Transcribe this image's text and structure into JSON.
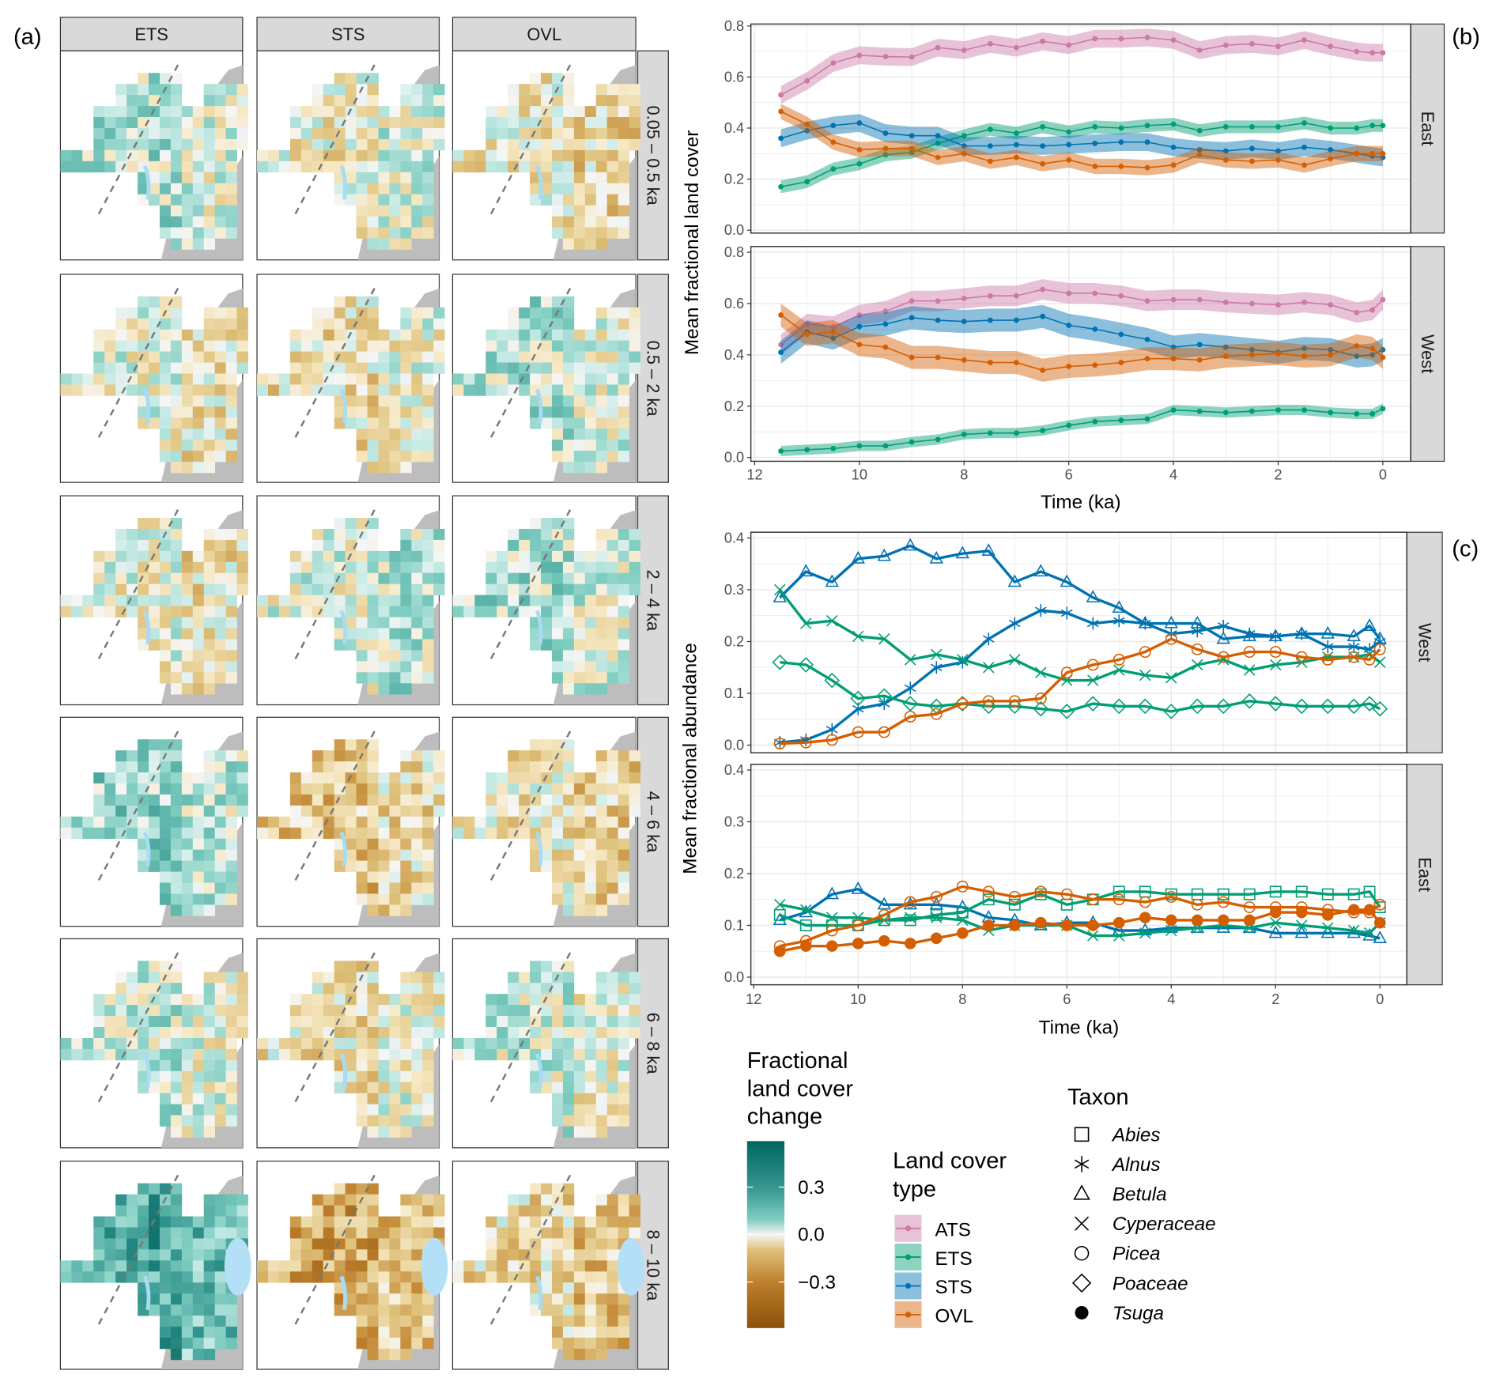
{
  "panel_labels": {
    "a": "(a)",
    "b": "(b)",
    "c": "(c)"
  },
  "panel_a": {
    "columns": [
      "ETS",
      "STS",
      "OVL"
    ],
    "rows": [
      "0.05 – 0.5 ka",
      "0.5 – 2 ka",
      "2 – 4 ka",
      "4 – 6 ka",
      "6 – 8 ka",
      "8 – 10 ka"
    ],
    "color_scale": {
      "low": "#8c510a",
      "mid": "#f5f5f5",
      "high": "#01665e"
    }
  },
  "chart_data": [
    {
      "panel": "b",
      "type": "line",
      "xlabel": "Time (ka)",
      "ylabel": "Mean fractional land cover",
      "x_reversed": true,
      "xlim": [
        12.1,
        -0.5
      ],
      "ylim": [
        0,
        0.8
      ],
      "x_tick_labels": [
        "12",
        "10",
        "8",
        "6",
        "4",
        "2",
        "0"
      ],
      "y_tick_labels": [
        "0.0",
        "0.2",
        "0.4",
        "0.6",
        "0.8"
      ],
      "grid": true,
      "facets": [
        "East",
        "West"
      ],
      "x": [
        11.5,
        11,
        10.5,
        10,
        9.5,
        9,
        8.5,
        8,
        7.5,
        7,
        6.5,
        6,
        5.5,
        5,
        4.5,
        4,
        3.5,
        3,
        2.5,
        2,
        1.5,
        1,
        0.5,
        0.2,
        0
      ],
      "series": [
        {
          "name": "ATS",
          "facet": "East",
          "color": "#cc79a7",
          "ci_halfwidth": 0.035,
          "values": [
            0.53,
            0.585,
            0.655,
            0.685,
            0.68,
            0.678,
            0.715,
            0.705,
            0.73,
            0.715,
            0.74,
            0.725,
            0.75,
            0.75,
            0.755,
            0.745,
            0.705,
            0.725,
            0.73,
            0.72,
            0.745,
            0.72,
            0.7,
            0.695,
            0.695
          ]
        },
        {
          "name": "ETS",
          "facet": "East",
          "color": "#009e73",
          "ci_halfwidth": 0.025,
          "values": [
            0.17,
            0.19,
            0.24,
            0.26,
            0.295,
            0.305,
            0.34,
            0.37,
            0.395,
            0.38,
            0.405,
            0.385,
            0.405,
            0.4,
            0.41,
            0.415,
            0.39,
            0.405,
            0.405,
            0.405,
            0.42,
            0.4,
            0.4,
            0.41,
            0.41
          ]
        },
        {
          "name": "STS",
          "facet": "East",
          "color": "#0072b2",
          "ci_halfwidth": 0.035,
          "values": [
            0.36,
            0.39,
            0.41,
            0.42,
            0.38,
            0.37,
            0.37,
            0.33,
            0.33,
            0.335,
            0.33,
            0.335,
            0.34,
            0.345,
            0.345,
            0.325,
            0.315,
            0.31,
            0.32,
            0.31,
            0.325,
            0.315,
            0.3,
            0.29,
            0.285
          ]
        },
        {
          "name": "OVL",
          "facet": "East",
          "color": "#d55e00",
          "ci_halfwidth": 0.03,
          "values": [
            0.465,
            0.415,
            0.345,
            0.315,
            0.32,
            0.32,
            0.285,
            0.3,
            0.27,
            0.285,
            0.26,
            0.275,
            0.25,
            0.25,
            0.245,
            0.255,
            0.295,
            0.275,
            0.27,
            0.275,
            0.255,
            0.28,
            0.3,
            0.3,
            0.3
          ]
        },
        {
          "name": "ATS",
          "facet": "West",
          "color": "#cc79a7",
          "ci_halfwidth": 0.04,
          "values": [
            0.44,
            0.52,
            0.51,
            0.555,
            0.57,
            0.61,
            0.61,
            0.62,
            0.63,
            0.63,
            0.655,
            0.64,
            0.64,
            0.63,
            0.61,
            0.615,
            0.615,
            0.605,
            0.6,
            0.595,
            0.605,
            0.595,
            0.565,
            0.575,
            0.615
          ]
        },
        {
          "name": "ETS",
          "facet": "West",
          "color": "#009e73",
          "ci_halfwidth": 0.02,
          "values": [
            0.025,
            0.03,
            0.035,
            0.045,
            0.045,
            0.06,
            0.07,
            0.09,
            0.095,
            0.095,
            0.105,
            0.125,
            0.14,
            0.145,
            0.15,
            0.185,
            0.18,
            0.175,
            0.18,
            0.185,
            0.185,
            0.175,
            0.17,
            0.17,
            0.19
          ]
        },
        {
          "name": "STS",
          "facet": "West",
          "color": "#0072b2",
          "ci_halfwidth": 0.045,
          "values": [
            0.41,
            0.49,
            0.465,
            0.51,
            0.52,
            0.545,
            0.535,
            0.53,
            0.535,
            0.535,
            0.55,
            0.515,
            0.5,
            0.48,
            0.46,
            0.43,
            0.44,
            0.43,
            0.42,
            0.41,
            0.425,
            0.42,
            0.395,
            0.4,
            0.42
          ]
        },
        {
          "name": "OVL",
          "facet": "West",
          "color": "#d55e00",
          "ci_halfwidth": 0.045,
          "values": [
            0.555,
            0.48,
            0.49,
            0.44,
            0.43,
            0.39,
            0.39,
            0.38,
            0.37,
            0.37,
            0.34,
            0.355,
            0.36,
            0.37,
            0.385,
            0.385,
            0.38,
            0.395,
            0.4,
            0.405,
            0.395,
            0.4,
            0.435,
            0.425,
            0.39
          ]
        }
      ]
    },
    {
      "panel": "c",
      "type": "line",
      "xlabel": "Time (ka)",
      "ylabel": "Mean fractional abundance",
      "x_reversed": true,
      "xlim": [
        12.1,
        -0.5
      ],
      "ylim": [
        0,
        0.4
      ],
      "x_tick_labels": [
        "12",
        "10",
        "8",
        "6",
        "4",
        "2",
        "0"
      ],
      "y_tick_labels": [
        "0.0",
        "0.1",
        "0.2",
        "0.3",
        "0.4"
      ],
      "grid": true,
      "facets": [
        "West",
        "East"
      ],
      "x": [
        11.5,
        11,
        10.5,
        10,
        9.5,
        9,
        8.5,
        8,
        7.5,
        7,
        6.5,
        6,
        5.5,
        5,
        4.5,
        4,
        3.5,
        3,
        2.5,
        2,
        1.5,
        1,
        0.5,
        0.2,
        0
      ],
      "series": [
        {
          "name": "Betula",
          "facet": "West",
          "color": "#0072b2",
          "marker": "triangle",
          "values": [
            0.285,
            0.335,
            0.315,
            0.36,
            0.365,
            0.385,
            0.36,
            0.37,
            0.375,
            0.315,
            0.335,
            0.315,
            0.285,
            0.265,
            0.235,
            0.235,
            0.235,
            0.205,
            0.21,
            0.21,
            0.215,
            0.215,
            0.21,
            0.23,
            0.205
          ]
        },
        {
          "name": "Alnus",
          "facet": "West",
          "color": "#0072b2",
          "marker": "asterisk",
          "values": [
            0.005,
            0.01,
            0.03,
            0.07,
            0.08,
            0.11,
            0.15,
            0.16,
            0.205,
            0.235,
            0.26,
            0.255,
            0.235,
            0.24,
            0.235,
            0.215,
            0.22,
            0.23,
            0.215,
            0.21,
            0.215,
            0.19,
            0.19,
            0.185,
            0.2
          ]
        },
        {
          "name": "Cyperaceae",
          "facet": "West",
          "color": "#009e73",
          "marker": "x",
          "values": [
            0.3,
            0.235,
            0.24,
            0.21,
            0.205,
            0.165,
            0.175,
            0.165,
            0.15,
            0.165,
            0.14,
            0.125,
            0.125,
            0.145,
            0.135,
            0.13,
            0.155,
            0.165,
            0.145,
            0.155,
            0.16,
            0.17,
            0.17,
            0.175,
            0.16
          ]
        },
        {
          "name": "Poaceae",
          "facet": "West",
          "color": "#009e73",
          "marker": "diamond",
          "values": [
            0.16,
            0.155,
            0.125,
            0.09,
            0.095,
            0.08,
            0.075,
            0.08,
            0.075,
            0.075,
            0.07,
            0.065,
            0.08,
            0.075,
            0.075,
            0.065,
            0.075,
            0.075,
            0.085,
            0.08,
            0.075,
            0.075,
            0.075,
            0.08,
            0.07
          ]
        },
        {
          "name": "Picea",
          "facet": "West",
          "color": "#d55e00",
          "marker": "circle",
          "values": [
            0.003,
            0.005,
            0.01,
            0.025,
            0.025,
            0.055,
            0.06,
            0.08,
            0.085,
            0.085,
            0.09,
            0.14,
            0.155,
            0.165,
            0.18,
            0.205,
            0.185,
            0.17,
            0.18,
            0.18,
            0.17,
            0.165,
            0.17,
            0.165,
            0.185
          ]
        },
        {
          "name": "Betula",
          "facet": "East",
          "color": "#0072b2",
          "marker": "triangle",
          "values": [
            0.11,
            0.125,
            0.16,
            0.17,
            0.14,
            0.14,
            0.14,
            0.135,
            0.115,
            0.11,
            0.1,
            0.105,
            0.105,
            0.09,
            0.09,
            0.095,
            0.095,
            0.095,
            0.095,
            0.085,
            0.085,
            0.085,
            0.085,
            0.08,
            0.075
          ]
        },
        {
          "name": "Abies",
          "facet": "East",
          "color": "#009e73",
          "marker": "square",
          "values": [
            0.12,
            0.1,
            0.1,
            0.1,
            0.11,
            0.11,
            0.12,
            0.125,
            0.15,
            0.14,
            0.16,
            0.14,
            0.15,
            0.165,
            0.165,
            0.16,
            0.16,
            0.16,
            0.16,
            0.165,
            0.165,
            0.16,
            0.16,
            0.165,
            0.135
          ]
        },
        {
          "name": "Cyperaceae",
          "facet": "East",
          "color": "#009e73",
          "marker": "x",
          "values": [
            0.14,
            0.13,
            0.115,
            0.115,
            0.11,
            0.115,
            0.115,
            0.11,
            0.09,
            0.1,
            0.1,
            0.1,
            0.08,
            0.08,
            0.085,
            0.09,
            0.095,
            0.1,
            0.095,
            0.105,
            0.1,
            0.095,
            0.09,
            0.085,
            0.105
          ]
        },
        {
          "name": "Picea",
          "facet": "East",
          "color": "#d55e00",
          "marker": "circle",
          "values": [
            0.06,
            0.07,
            0.09,
            0.1,
            0.12,
            0.145,
            0.155,
            0.175,
            0.165,
            0.155,
            0.165,
            0.16,
            0.15,
            0.15,
            0.145,
            0.155,
            0.14,
            0.145,
            0.135,
            0.135,
            0.135,
            0.13,
            0.125,
            0.125,
            0.14
          ]
        },
        {
          "name": "Tsuga",
          "facet": "East",
          "color": "#d55e00",
          "marker": "filled-circle",
          "values": [
            0.05,
            0.06,
            0.06,
            0.065,
            0.07,
            0.065,
            0.075,
            0.085,
            0.1,
            0.1,
            0.105,
            0.1,
            0.1,
            0.105,
            0.115,
            0.11,
            0.11,
            0.11,
            0.11,
            0.125,
            0.125,
            0.12,
            0.13,
            0.13,
            0.105
          ]
        }
      ]
    }
  ],
  "legends": {
    "colorbar": {
      "title_lines": [
        "Fractional",
        "land cover",
        "change"
      ],
      "tick_labels": [
        "0.3",
        "0.0",
        "−0.3"
      ]
    },
    "land_cover": {
      "title_lines": [
        "Land cover",
        "type"
      ],
      "items": [
        {
          "label": "ATS",
          "color": "#cc79a7"
        },
        {
          "label": "ETS",
          "color": "#009e73"
        },
        {
          "label": "STS",
          "color": "#0072b2"
        },
        {
          "label": "OVL",
          "color": "#d55e00"
        }
      ]
    },
    "taxon": {
      "title": "Taxon",
      "items": [
        {
          "label": "Abies",
          "marker": "square"
        },
        {
          "label": "Alnus",
          "marker": "asterisk"
        },
        {
          "label": "Betula",
          "marker": "triangle"
        },
        {
          "label": "Cyperaceae",
          "marker": "x"
        },
        {
          "label": "Picea",
          "marker": "circle"
        },
        {
          "label": "Poaceae",
          "marker": "diamond"
        },
        {
          "label": "Tsuga",
          "marker": "filled-circle"
        }
      ]
    }
  }
}
